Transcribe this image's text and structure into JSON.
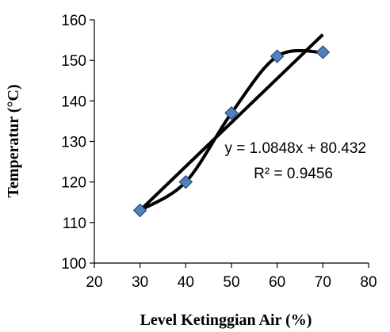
{
  "chart_data": {
    "type": "scatter",
    "title": "",
    "xlabel": "Level Ketinggian Air (%)",
    "ylabel": "Temperatur (°C)",
    "xlim": [
      20,
      80
    ],
    "ylim": [
      100,
      160
    ],
    "xticks": [
      20,
      30,
      40,
      50,
      60,
      70,
      80
    ],
    "yticks": [
      100,
      110,
      120,
      130,
      140,
      150,
      160
    ],
    "grid": false,
    "legend": "none",
    "series": [
      {
        "x": [
          30,
          40,
          50,
          60,
          70
        ],
        "y": [
          113,
          120,
          137,
          151,
          152
        ],
        "marker": "diamond",
        "marker_color": "#4F81BD",
        "smooth_line": true,
        "line_color": "#000000"
      }
    ],
    "trendline": {
      "type": "linear",
      "slope": 1.0848,
      "intercept": 80.432,
      "x_range": [
        30,
        70
      ],
      "color": "#000000",
      "equation_label": "y = 1.0848x + 80.432",
      "r2_label": "R² = 0.9456"
    }
  }
}
